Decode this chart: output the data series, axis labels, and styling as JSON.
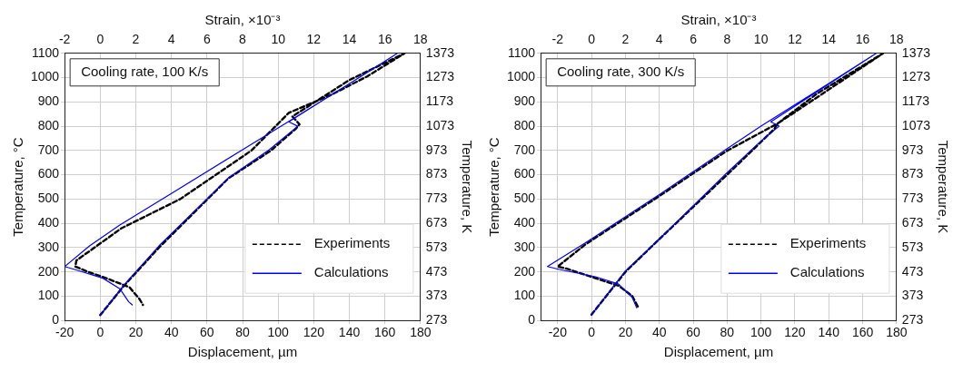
{
  "chart_data": [
    {
      "type": "line",
      "xlabel": "Displacement, µm",
      "ylabel": "Temperature, °C",
      "y2label": "Temperature, K",
      "x2label": "Strain, ×10⁻³",
      "xlim": [
        -20,
        180
      ],
      "xticks": [
        -20,
        0,
        20,
        40,
        60,
        80,
        100,
        120,
        140,
        160,
        180
      ],
      "ylim": [
        0,
        1100
      ],
      "yticks": [
        0,
        100,
        200,
        300,
        400,
        500,
        600,
        700,
        800,
        900,
        1000,
        1100
      ],
      "x2lim": [
        -2,
        18
      ],
      "x2ticks": [
        -2,
        0,
        2,
        4,
        6,
        8,
        10,
        12,
        14,
        16,
        18
      ],
      "y2lim": [
        273,
        1373
      ],
      "y2ticks": [
        273,
        373,
        473,
        573,
        673,
        773,
        873,
        973,
        1073,
        1173,
        1273,
        1373
      ],
      "grid": true,
      "legend": "bottom right",
      "marker": "none",
      "annotations": [
        "Cooling rate, 100 K/s"
      ],
      "series": [
        {
          "name": "Experiments",
          "color": "#000000",
          "line_style": "dashed",
          "x": [
            0,
            13,
            33,
            72,
            96,
            110,
            112,
            108,
            140,
            171,
            150,
            130,
            106,
            85,
            45,
            12,
            -13.4,
            -14,
            -6,
            3.4,
            16.4,
            22,
            24
          ],
          "values": [
            22,
            140,
            300,
            585,
            700,
            790,
            808,
            840,
            990,
            1100,
            1005,
            930,
            855,
            700,
            500,
            380,
            247,
            222,
            198,
            174,
            137,
            89,
            64
          ]
        },
        {
          "name": "Calculations",
          "color": "#0000ff",
          "line_style": "solid",
          "x": [
            0,
            13,
            33,
            72,
            95,
            111,
            106,
            130,
            150,
            167,
            140,
            105,
            80,
            40,
            11,
            -6,
            -20,
            -13.5,
            1.5,
            11,
            16,
            18
          ],
          "values": [
            22,
            143,
            307,
            587,
            703,
            800,
            818,
            929,
            1021,
            1100,
            975,
            815,
            703,
            523,
            393,
            307,
            222,
            208,
            174,
            131,
            77,
            64
          ]
        }
      ]
    },
    {
      "type": "line",
      "xlabel": "Displacement, µm",
      "ylabel": "Temperature, °C",
      "y2label": "Temperature, K",
      "x2label": "Strain, ×10⁻³",
      "xlim": [
        -30,
        180
      ],
      "xticks": [
        -20,
        0,
        20,
        40,
        60,
        80,
        100,
        120,
        140,
        160,
        180
      ],
      "ylim": [
        0,
        1100
      ],
      "yticks": [
        0,
        100,
        200,
        300,
        400,
        500,
        600,
        700,
        800,
        900,
        1000,
        1100
      ],
      "x2lim": [
        -3,
        18
      ],
      "x2ticks": [
        -2,
        0,
        2,
        4,
        6,
        8,
        10,
        12,
        14,
        16,
        18
      ],
      "y2lim": [
        273,
        1373
      ],
      "y2ticks": [
        273,
        373,
        473,
        573,
        673,
        773,
        873,
        973,
        1073,
        1173,
        1273,
        1373
      ],
      "grid": true,
      "legend": "bottom right",
      "marker": "none",
      "annotations": [
        "Cooling rate, 300 K/s"
      ],
      "series": [
        {
          "name": "Experiments",
          "color": "#000000",
          "line_style": "dashed",
          "x": [
            0,
            20,
            40,
            80,
            100,
            108,
            110,
            131,
            172,
            133,
            110,
            79.5,
            40.4,
            -3.5,
            -20,
            -15,
            2.3,
            16,
            24,
            27.7
          ],
          "values": [
            24,
            200,
            335,
            600,
            735,
            790,
            812,
            909,
            1100,
            934,
            812,
            697,
            514,
            314,
            222,
            214,
            174,
            143,
            101,
            52
          ]
        },
        {
          "name": "Calculations",
          "color": "#0000ff",
          "line_style": "solid",
          "x": [
            0,
            20,
            40.4,
            79.5,
            100,
            110.7,
            105.8,
            140,
            168,
            140,
            100,
            79.5,
            40.4,
            -3.5,
            -26,
            -19,
            2.3,
            16,
            24,
            26.7
          ],
          "values": [
            24,
            204,
            338,
            605,
            739,
            800,
            818,
            973,
            1100,
            976,
            800,
            705,
            520,
            320,
            222,
            210,
            180,
            150,
            95,
            52
          ]
        }
      ]
    }
  ]
}
